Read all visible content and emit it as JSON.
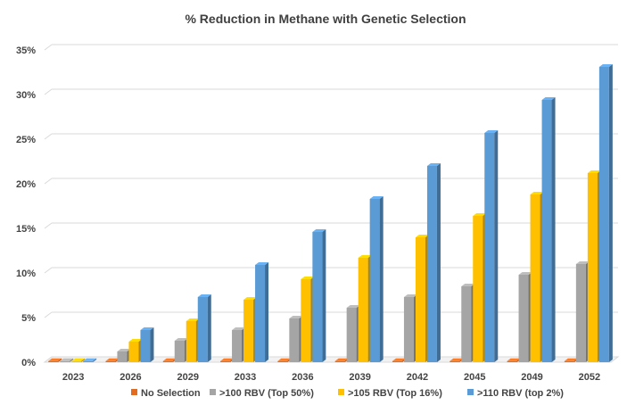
{
  "chart_data": {
    "type": "bar",
    "title": "% Reduction in Methane with Genetic Selection",
    "xlabel": "",
    "ylabel": "",
    "categories": [
      "2023",
      "2026",
      "2029",
      "2033",
      "2036",
      "2039",
      "2042",
      "2045",
      "2049",
      "2052"
    ],
    "series": [
      {
        "name": "No Selection",
        "color": "#E46C1E",
        "values": [
          0,
          0,
          0,
          0,
          0,
          0,
          0,
          0,
          0,
          0
        ]
      },
      {
        "name": ">100 RBV (Top 50%)",
        "color": "#A5A5A5",
        "values": [
          0,
          1.2,
          2.4,
          3.6,
          4.9,
          6.1,
          7.3,
          8.5,
          9.8,
          11.0
        ]
      },
      {
        "name": ">105 RBV (Top 16%)",
        "color": "#FFC000",
        "values": [
          0,
          2.3,
          4.6,
          7.0,
          9.3,
          11.7,
          14.0,
          16.4,
          18.8,
          21.2
        ]
      },
      {
        "name": ">110 RBV (top 2%)",
        "color": "#5B9BD5",
        "values": [
          0,
          3.6,
          7.3,
          10.9,
          14.6,
          18.3,
          22.0,
          25.7,
          29.4,
          33.1
        ]
      }
    ],
    "ylim": [
      0,
      35
    ],
    "yticks": [
      0,
      5,
      10,
      15,
      20,
      25,
      30,
      35
    ],
    "ytick_suffix": "%",
    "grid": true,
    "legend": "bottom"
  }
}
